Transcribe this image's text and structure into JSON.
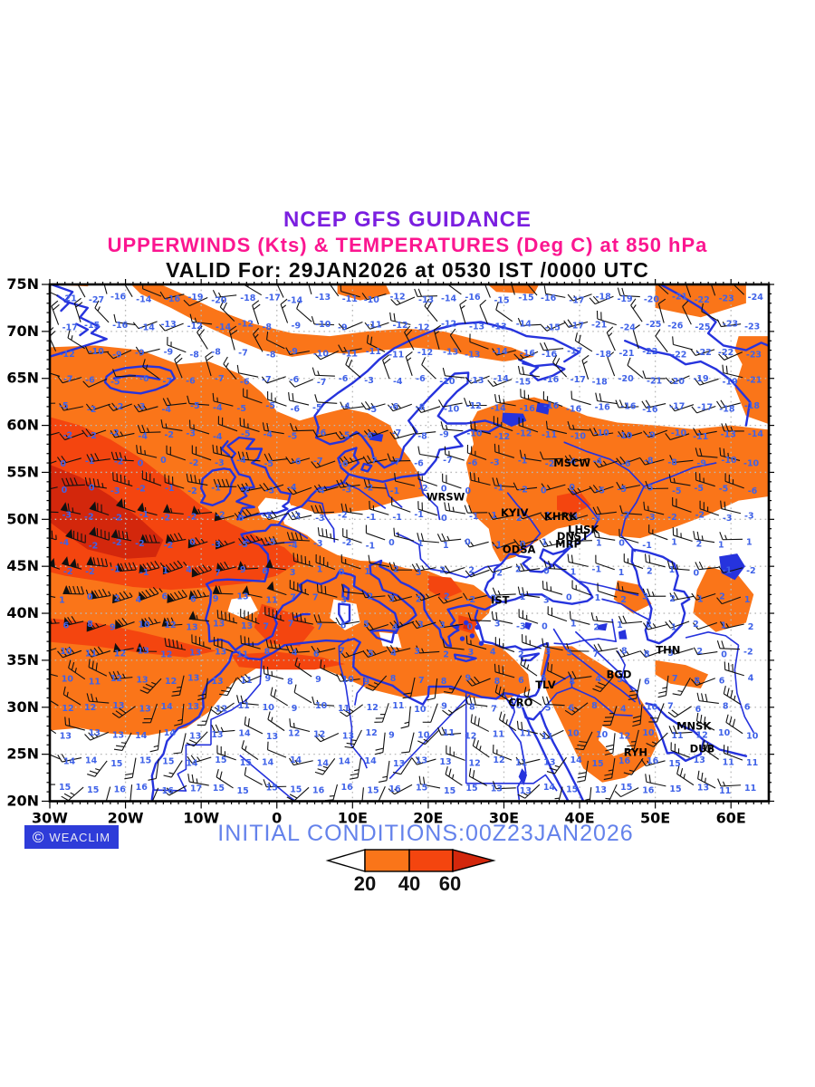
{
  "header": {
    "line1": "NCEP GFS GUIDANCE",
    "line2": "UPPERWINDS (Kts) & TEMPERATURES (Deg C) at 850 hPa",
    "line3": "VALID For: 29JAN2026 at 0530 IST /0000 UTC",
    "line1_color": "#7b1fe0",
    "line2_color": "#fb1690",
    "line3_color": "#0a0a0a"
  },
  "map": {
    "lon_labels": [
      "30W",
      "20W",
      "10W",
      "0",
      "10E",
      "20E",
      "30E",
      "40E",
      "50E",
      "60E"
    ],
    "lon_values": [
      -30,
      -20,
      -10,
      0,
      10,
      20,
      30,
      40,
      50,
      60
    ],
    "lat_labels": [
      "75N",
      "70N",
      "65N",
      "60N",
      "55N",
      "50N",
      "45N",
      "40N",
      "35N",
      "30N",
      "25N",
      "20N"
    ],
    "lat_values": [
      75,
      70,
      65,
      60,
      55,
      50,
      45,
      40,
      35,
      30,
      25,
      20
    ],
    "colors": {
      "shade_20_40": "#fa7519",
      "shade_40_60": "#f4450f",
      "shade_60_plus": "#d3270c",
      "coastline": "#2633dd",
      "temperature_text": "#3f62e8",
      "wind_barb": "#111111",
      "grid_dots": "#b8b8b8",
      "city_text": "#000000",
      "frame": "#000000"
    },
    "cities": [
      {
        "name": "MSCW",
        "lon": 39.0,
        "lat": 56.0
      },
      {
        "name": "WRSW",
        "lon": 22.3,
        "lat": 52.4
      },
      {
        "name": "KYIV",
        "lon": 31.4,
        "lat": 50.7
      },
      {
        "name": "KHRK",
        "lon": 37.5,
        "lat": 50.3
      },
      {
        "name": "LHSK",
        "lon": 40.5,
        "lat": 48.9
      },
      {
        "name": "DNST",
        "lon": 39.1,
        "lat": 48.2
      },
      {
        "name": "MRP",
        "lon": 38.5,
        "lat": 47.4
      },
      {
        "name": "ODSA",
        "lon": 32.0,
        "lat": 46.8
      },
      {
        "name": "IST",
        "lon": 29.5,
        "lat": 41.4
      },
      {
        "name": "THN",
        "lon": 51.7,
        "lat": 36.1
      },
      {
        "name": "BGD",
        "lon": 45.2,
        "lat": 33.5
      },
      {
        "name": "TLV",
        "lon": 35.5,
        "lat": 32.4
      },
      {
        "name": "CRO",
        "lon": 32.2,
        "lat": 30.5
      },
      {
        "name": "MNSK",
        "lon": 55.1,
        "lat": 28.0
      },
      {
        "name": "DUB",
        "lon": 56.2,
        "lat": 25.6
      },
      {
        "name": "RYH",
        "lon": 47.4,
        "lat": 25.2
      }
    ],
    "temperature_field": {
      "lats": [
        73.5,
        70.6,
        67.7,
        64.8,
        61.9,
        59.0,
        56.1,
        53.2,
        50.3,
        47.4,
        44.5,
        41.6,
        38.7,
        35.8,
        32.9,
        30.0,
        27.1,
        24.2,
        21.3
      ],
      "lon_start": -28.5,
      "lon_step": 3.35,
      "rows": [
        [
          -21,
          -27,
          -16,
          -14,
          -16,
          -19,
          -20,
          -18,
          -17,
          -14,
          -13,
          -11,
          -10,
          -12,
          -13,
          -14,
          -16,
          -15,
          -15,
          -16,
          -17,
          -18,
          -19,
          -20,
          -21,
          -22,
          -23,
          -24
        ],
        [
          -17,
          -15,
          -16,
          -14,
          -13,
          -12,
          -14,
          -12,
          -8,
          -9,
          -10,
          -9,
          -11,
          -12,
          -12,
          -12,
          -13,
          -13,
          -14,
          -15,
          -17,
          -21,
          -24,
          -25,
          -26,
          -25,
          -23,
          -23
        ],
        [
          -12,
          -10,
          -9,
          -9,
          -9,
          -8,
          -8,
          -7,
          -8,
          -9,
          -10,
          -11,
          -11,
          -11,
          -12,
          -13,
          -13,
          -14,
          -16,
          -16,
          -17,
          -18,
          -21,
          -22,
          -22,
          -22,
          -22,
          -23
        ],
        [
          -7,
          -6,
          -5,
          -6,
          -7,
          -6,
          -7,
          -6,
          -7,
          -6,
          -7,
          -6,
          -3,
          -4,
          -6,
          -10,
          -13,
          -14,
          -15,
          -16,
          -17,
          -18,
          -20,
          -21,
          -20,
          -19,
          -19,
          -21
        ],
        [
          -5,
          -2,
          -2,
          -3,
          -4,
          -5,
          -4,
          -5,
          -5,
          -6,
          -5,
          -4,
          -5,
          -6,
          -8,
          -10,
          -12,
          -14,
          -16,
          -16,
          -16,
          -16,
          -16,
          -16,
          -17,
          -17,
          -18,
          -18
        ],
        [
          -2,
          -2,
          -2,
          -4,
          -2,
          -3,
          -4,
          -5,
          -4,
          -5,
          -6,
          -5,
          -6,
          -7,
          -8,
          -9,
          -10,
          -12,
          -12,
          -11,
          -10,
          -10,
          -10,
          -9,
          -10,
          -11,
          -13,
          -14
        ],
        [
          0,
          -1,
          -2,
          0,
          0,
          -2,
          -3,
          -4,
          -5,
          -6,
          -7,
          -6,
          -7,
          -7,
          -6,
          -7,
          -6,
          -3,
          -1,
          -2,
          -4,
          -4,
          -6,
          -8,
          -8,
          -9,
          -10,
          -10
        ],
        [
          0,
          0,
          -3,
          -2,
          -1,
          -2,
          -1,
          -2,
          -3,
          -4,
          -4,
          -3,
          -2,
          -1,
          -2,
          0,
          0,
          -1,
          -2,
          0,
          0,
          -5,
          -5,
          -5,
          -5,
          -5,
          -5,
          -6
        ],
        [
          -3,
          -2,
          -2,
          -1,
          -2,
          -2,
          -2,
          0,
          -1,
          -2,
          -3,
          -2,
          -1,
          -1,
          -1,
          0,
          -1,
          1,
          2,
          1,
          -3,
          -3,
          -2,
          -3,
          -2,
          -2,
          -3,
          -3
        ],
        [
          -4,
          -2,
          -2,
          -2,
          -2,
          0,
          -3,
          -5,
          -5,
          -4,
          -3,
          -2,
          -1,
          0,
          1,
          1,
          0,
          -1,
          0,
          1,
          2,
          1,
          0,
          -1,
          1,
          2,
          1,
          1
        ],
        [
          -2,
          -2,
          -1,
          -1,
          1,
          4,
          7,
          9,
          6,
          3,
          1,
          0,
          1,
          2,
          3,
          2,
          2,
          -2,
          2,
          0,
          1,
          -1,
          1,
          2,
          1,
          0,
          -1,
          -2
        ],
        [
          1,
          0,
          2,
          4,
          6,
          6,
          9,
          13,
          11,
          7,
          7,
          3,
          2,
          3,
          2,
          2,
          -2,
          2,
          1,
          3,
          0,
          1,
          2,
          3,
          2,
          1,
          2,
          1
        ],
        [
          6,
          8,
          9,
          10,
          12,
          13,
          13,
          13,
          7,
          7,
          7,
          6,
          5,
          4,
          3,
          3,
          0,
          3,
          -3,
          0,
          1,
          2,
          1,
          2,
          1,
          2,
          1,
          2
        ],
        [
          10,
          11,
          12,
          13,
          12,
          13,
          13,
          11,
          8,
          4,
          6,
          7,
          5,
          4,
          3,
          2,
          3,
          4,
          2,
          3,
          5,
          7,
          8,
          8,
          5,
          2,
          0,
          -2
        ],
        [
          10,
          11,
          12,
          13,
          12,
          13,
          13,
          11,
          9,
          8,
          9,
          10,
          9,
          8,
          7,
          8,
          9,
          8,
          6,
          5,
          4,
          4,
          5,
          6,
          7,
          8,
          6,
          4
        ],
        [
          12,
          12,
          13,
          13,
          14,
          13,
          12,
          11,
          10,
          9,
          10,
          11,
          12,
          11,
          10,
          9,
          8,
          7,
          6,
          5,
          6,
          8,
          4,
          10,
          7,
          6,
          8,
          6
        ],
        [
          13,
          13,
          13,
          14,
          14,
          13,
          13,
          14,
          13,
          12,
          12,
          13,
          12,
          9,
          10,
          11,
          12,
          11,
          11,
          11,
          10,
          10,
          12,
          10,
          11,
          12,
          10,
          10
        ],
        [
          14,
          14,
          15,
          15,
          15,
          14,
          15,
          15,
          14,
          14,
          14,
          14,
          14,
          13,
          13,
          13,
          12,
          12,
          11,
          13,
          14,
          15,
          16,
          16,
          15,
          13,
          11,
          11
        ],
        [
          15,
          15,
          16,
          16,
          16,
          17,
          15,
          15,
          15,
          15,
          16,
          16,
          15,
          16,
          15,
          15,
          15,
          13,
          13,
          14,
          15,
          13,
          15,
          16,
          15,
          13,
          11,
          11
        ]
      ]
    }
  },
  "legend": {
    "labels": [
      "20",
      "40",
      "60"
    ],
    "band_colors": [
      "#ffffff",
      "#fa7519",
      "#f4450f",
      "#d3270c"
    ]
  },
  "footer": {
    "initial_conditions": "INITIAL CONDITIONS:00Z23JAN2026",
    "color": "#6482eb",
    "logo_symbol": "©",
    "logo_text": "WEACLIM",
    "logo_bg": "#2e3cd9"
  }
}
